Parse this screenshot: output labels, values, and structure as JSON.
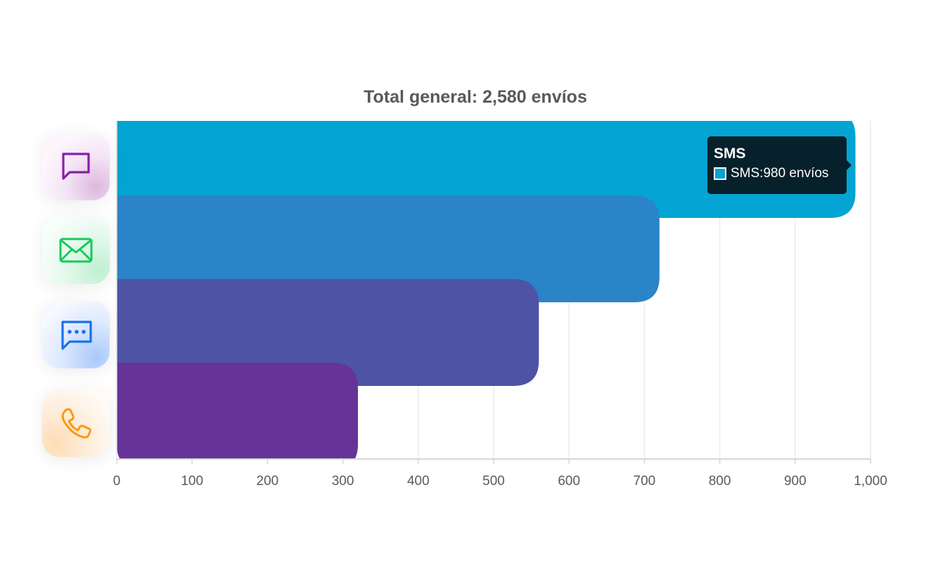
{
  "chart_data": {
    "type": "bar",
    "orientation": "horizontal",
    "title": "Total general: 2,580 envíos",
    "categories": [
      "SMS",
      "Email",
      "Chat",
      "Llamada"
    ],
    "values": [
      980,
      720,
      560,
      320
    ],
    "colors": [
      "#03a4d3",
      "#2b84c7",
      "#4e53a6",
      "#663398"
    ],
    "xlim": [
      0,
      1000
    ],
    "xticks": [
      0,
      100,
      200,
      300,
      400,
      500,
      600,
      700,
      800,
      900,
      1000
    ],
    "xtick_labels": [
      "0",
      "100",
      "200",
      "300",
      "400",
      "500",
      "600",
      "700",
      "800",
      "900",
      "1,000"
    ],
    "grid": true,
    "xlabel": "",
    "ylabel": ""
  },
  "icons": [
    {
      "name": "sms-icon",
      "color": "#8a1ea8"
    },
    {
      "name": "email-icon",
      "color": "#19c85a"
    },
    {
      "name": "chat-icon",
      "color": "#1670f0"
    },
    {
      "name": "phone-icon",
      "color": "#f79a12"
    }
  ],
  "tooltip": {
    "title": "SMS",
    "label": "SMS:980 envíos",
    "color": "#03a4d3"
  }
}
